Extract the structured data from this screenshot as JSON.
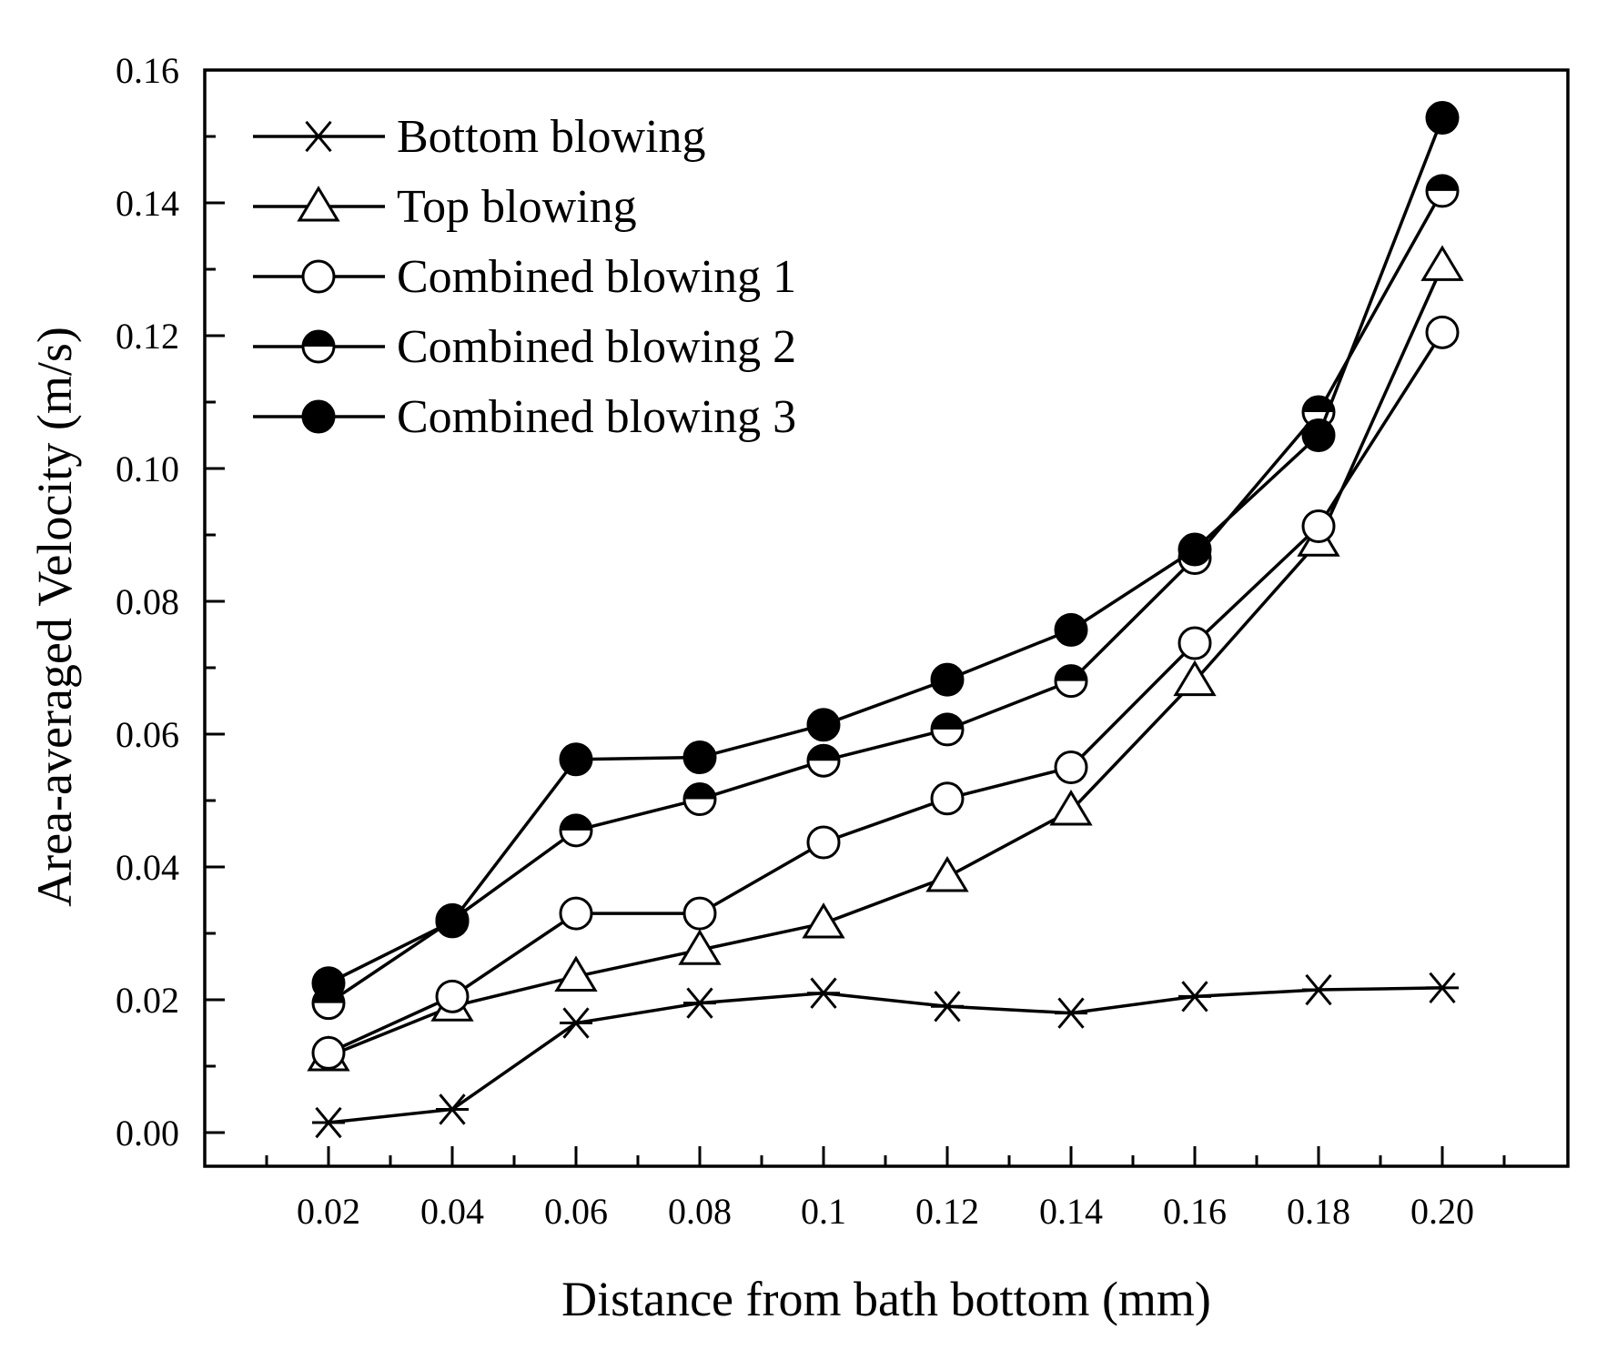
{
  "chart_data": {
    "type": "line",
    "title": "",
    "xlabel": "Distance from bath bottom (mm)",
    "ylabel": "Area-averaged Velocity (m/s)",
    "categories": [
      "0.02",
      "0.04",
      "0.06",
      "0.08",
      "0.1",
      "0.12",
      "0.14",
      "0.16",
      "0.18",
      "0.20"
    ],
    "ylim": [
      -0.005,
      0.16
    ],
    "yticks": [
      0.0,
      0.02,
      0.04,
      0.06,
      0.08,
      0.1,
      0.12,
      0.14,
      0.16
    ],
    "ytick_labels": [
      "0.00",
      "0.02",
      "0.04",
      "0.06",
      "0.08",
      "0.10",
      "0.12",
      "0.14",
      "0.16"
    ],
    "grid": false,
    "legend_position": "top-left",
    "series": [
      {
        "name": "Bottom blowing",
        "marker": "star",
        "values": [
          0.0015,
          0.0035,
          0.0165,
          0.0195,
          0.021,
          0.019,
          0.018,
          0.0205,
          0.0215,
          0.0218
        ]
      },
      {
        "name": "Top blowing",
        "marker": "triangle-open",
        "values": [
          0.0115,
          0.019,
          0.0235,
          0.0275,
          0.0315,
          0.0385,
          0.0485,
          0.068,
          0.089,
          0.1305
        ]
      },
      {
        "name": "Combined blowing 1",
        "marker": "circle-open",
        "values": [
          0.012,
          0.0205,
          0.033,
          0.033,
          0.0437,
          0.0503,
          0.055,
          0.0737,
          0.0913,
          0.1205
        ]
      },
      {
        "name": "Combined blowing 2",
        "marker": "circle-half",
        "values": [
          0.0195,
          0.032,
          0.0455,
          0.0502,
          0.056,
          0.0607,
          0.068,
          0.0865,
          0.1085,
          0.1418
        ]
      },
      {
        "name": "Combined blowing 3",
        "marker": "circle-filled",
        "values": [
          0.0225,
          0.0318,
          0.0562,
          0.0565,
          0.0614,
          0.0682,
          0.0757,
          0.0878,
          0.105,
          0.1528
        ]
      }
    ]
  }
}
